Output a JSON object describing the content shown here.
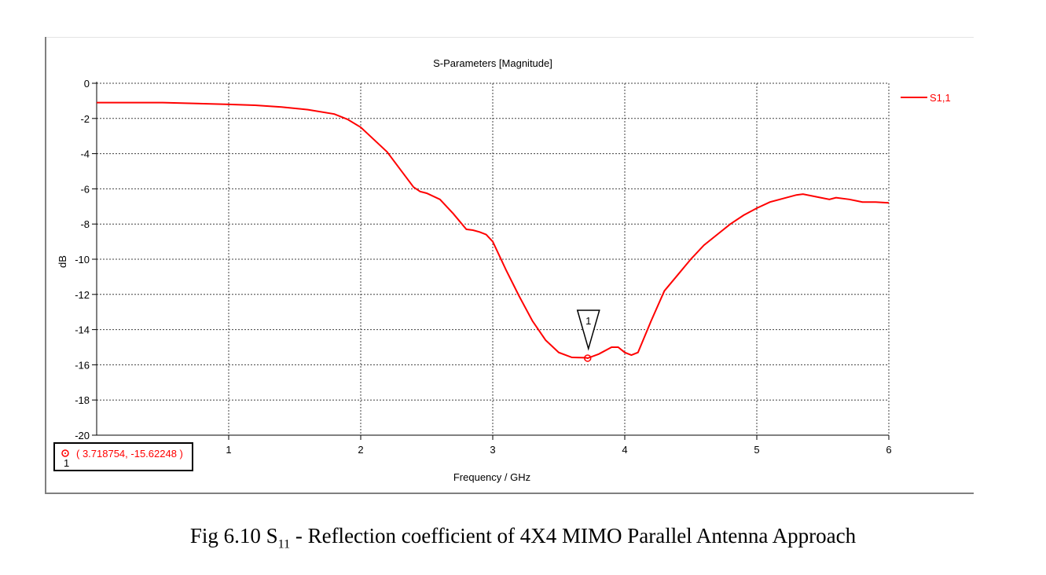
{
  "caption": {
    "fig_label": "Fig 6.10 S",
    "subscript": "11",
    "dash": " - ",
    "rest": "Reflection coefficient of 4X4 MIMO Parallel Antenna Approach"
  },
  "colors": {
    "series": "#ff0000",
    "grid": "#404040",
    "axis": "#000000"
  },
  "chart_data": {
    "type": "line",
    "title": "S-Parameters [Magnitude]",
    "xlabel": "Frequency / GHz",
    "ylabel": "dB",
    "xlim": [
      0,
      6
    ],
    "ylim": [
      -20,
      0
    ],
    "xticks": [
      1,
      2,
      3,
      4,
      5,
      6
    ],
    "yticks": [
      0,
      -2,
      -4,
      -6,
      -8,
      -10,
      -12,
      -14,
      -16,
      -18,
      -20
    ],
    "grid": true,
    "legend_position": "right",
    "series": [
      {
        "name": "S1,1",
        "x": [
          0,
          0.5,
          1.0,
          1.2,
          1.4,
          1.6,
          1.8,
          1.9,
          2.0,
          2.1,
          2.2,
          2.3,
          2.4,
          2.45,
          2.5,
          2.6,
          2.7,
          2.8,
          2.85,
          2.9,
          2.95,
          3.0,
          3.1,
          3.2,
          3.3,
          3.4,
          3.5,
          3.6,
          3.7,
          3.72,
          3.8,
          3.9,
          3.95,
          4.0,
          4.05,
          4.1,
          4.2,
          4.3,
          4.4,
          4.5,
          4.6,
          4.7,
          4.8,
          4.9,
          5.0,
          5.1,
          5.2,
          5.3,
          5.35,
          5.45,
          5.55,
          5.6,
          5.7,
          5.8,
          5.9,
          6.0
        ],
        "y": [
          -1.1,
          -1.1,
          -1.2,
          -1.25,
          -1.35,
          -1.5,
          -1.75,
          -2.05,
          -2.5,
          -3.2,
          -3.9,
          -4.9,
          -5.9,
          -6.15,
          -6.25,
          -6.6,
          -7.4,
          -8.3,
          -8.35,
          -8.45,
          -8.6,
          -9.0,
          -10.6,
          -12.1,
          -13.5,
          -14.6,
          -15.3,
          -15.58,
          -15.6,
          -15.62,
          -15.4,
          -15.0,
          -15.0,
          -15.3,
          -15.45,
          -15.3,
          -13.5,
          -11.8,
          -10.9,
          -10.0,
          -9.2,
          -8.6,
          -8.0,
          -7.5,
          -7.1,
          -6.75,
          -6.55,
          -6.35,
          -6.3,
          -6.45,
          -6.6,
          -6.5,
          -6.6,
          -6.75,
          -6.75,
          -6.8
        ]
      }
    ],
    "marker": {
      "id": "1",
      "x": 3.718754,
      "y": -15.62248,
      "readout": "( 3.718754, -15.62248 )"
    }
  }
}
